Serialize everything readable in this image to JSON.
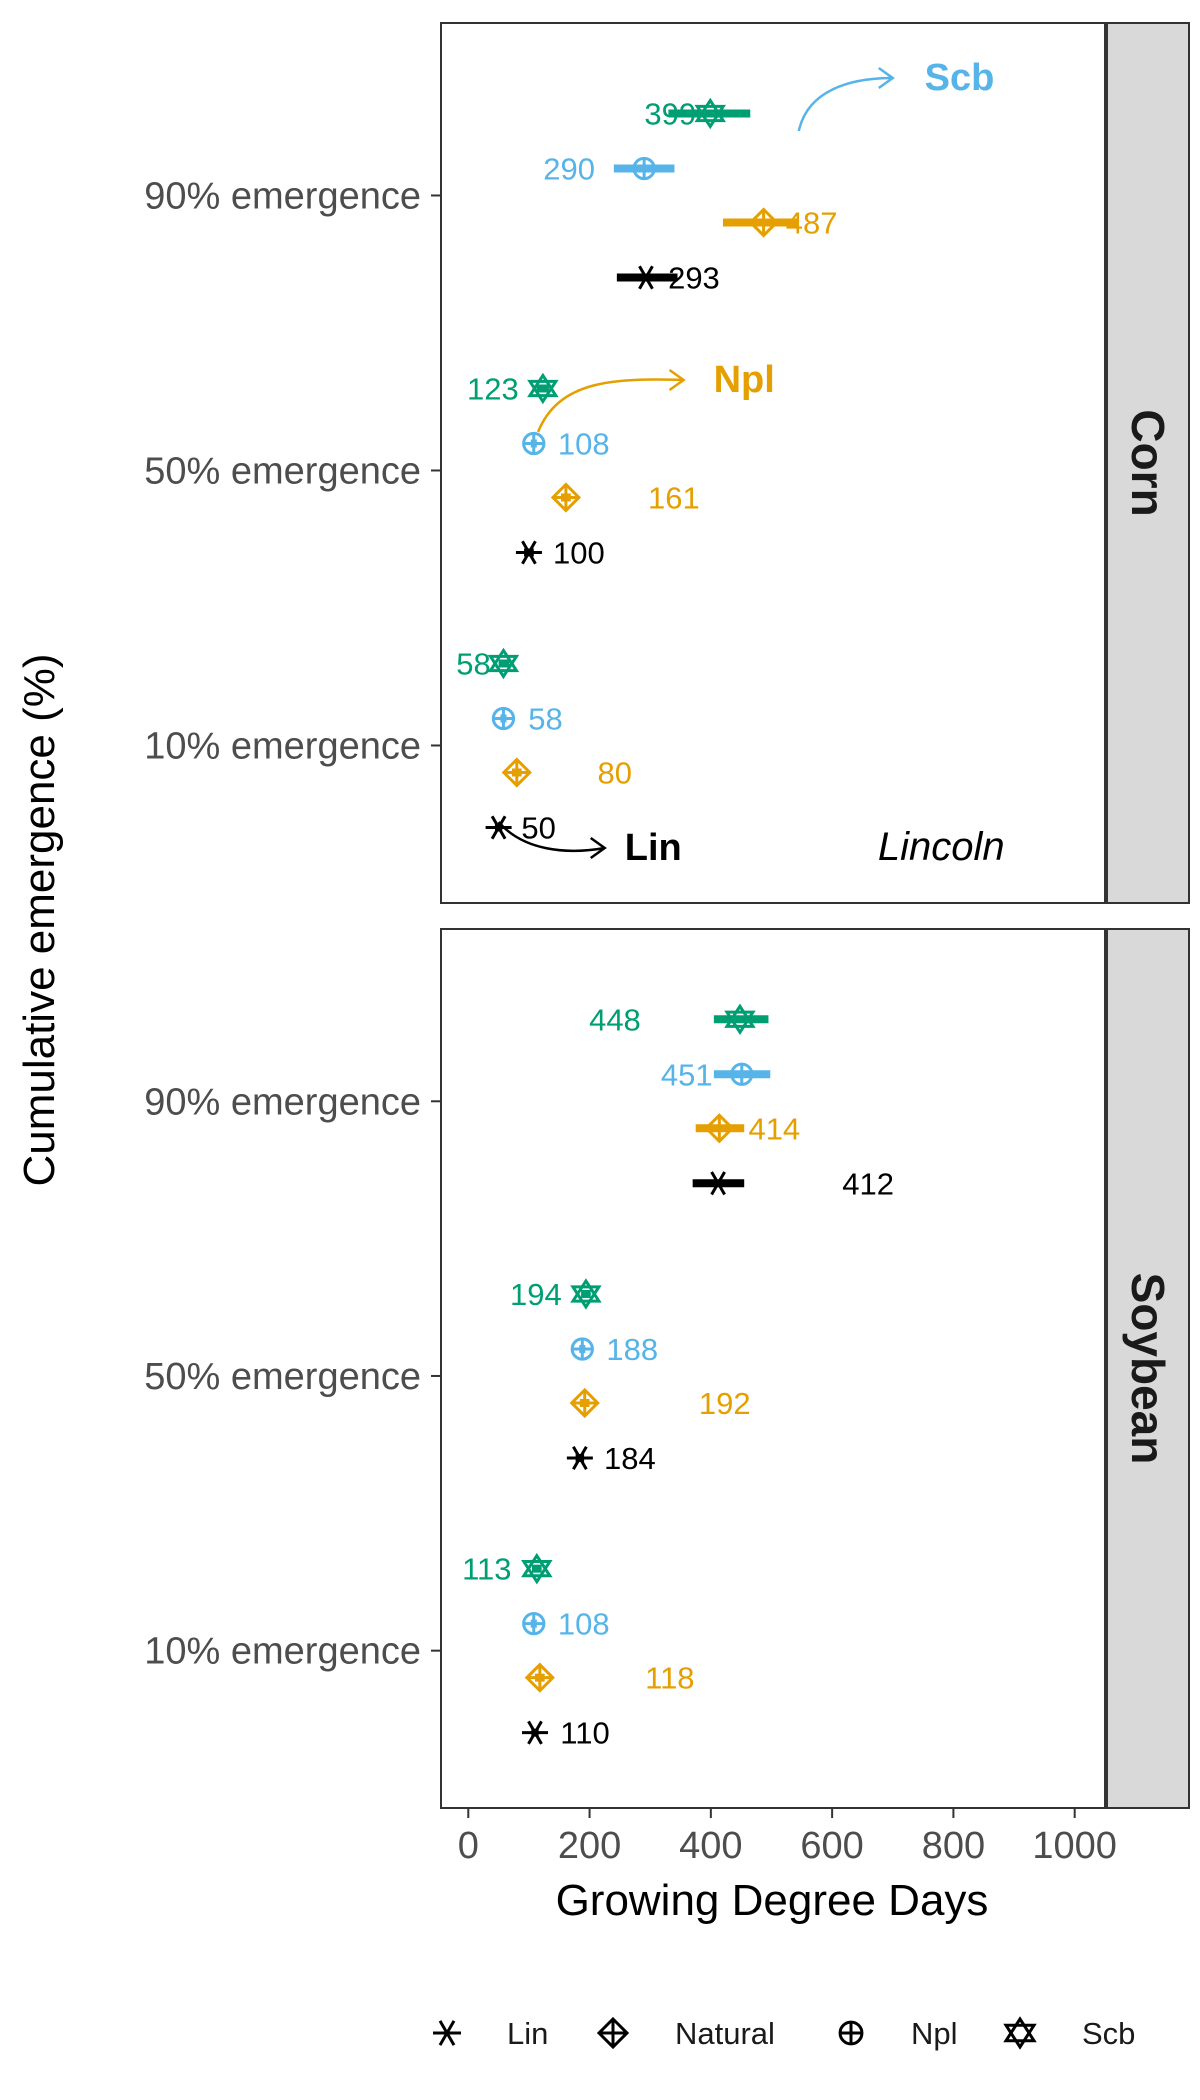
{
  "chart_data": {
    "type": "scatter",
    "xlabel": "Growing Degree Days",
    "ylabel": "Cumulative emergence (%)",
    "xlim": [
      -45,
      1050
    ],
    "x_ticks": [
      0,
      200,
      400,
      600,
      800,
      1000
    ],
    "y_categories": [
      "10% emergence",
      "50% emergence",
      "90% emergence"
    ],
    "grid": false,
    "legend_position": "bottom",
    "legend": [
      {
        "name": "Lin",
        "shape": "asterisk",
        "color": "#000000"
      },
      {
        "name": "Natural",
        "shape": "diamond-plus",
        "color": "#E69F00"
      },
      {
        "name": "Npl",
        "shape": "circle-plus",
        "color": "#56B4E9"
      },
      {
        "name": "Scb",
        "shape": "star-of-david",
        "color": "#009E73"
      }
    ],
    "panels": [
      {
        "facet": "Corn",
        "annotation": "Lincoln",
        "series": [
          {
            "name": "Scb",
            "color": "#009E73",
            "shape": "star-of-david",
            "points": [
              {
                "level": "10% emergence",
                "x": 58,
                "lo": 50,
                "hi": 68,
                "label": "58"
              },
              {
                "level": "50% emergence",
                "x": 123,
                "lo": 113,
                "hi": 133,
                "label": "123"
              },
              {
                "level": "90% emergence",
                "x": 399,
                "lo": 330,
                "hi": 465,
                "label": "399"
              }
            ]
          },
          {
            "name": "Npl",
            "color": "#56B4E9",
            "shape": "circle-plus",
            "points": [
              {
                "level": "10% emergence",
                "x": 58,
                "lo": 53,
                "hi": 63,
                "label": "58"
              },
              {
                "level": "50% emergence",
                "x": 108,
                "lo": 103,
                "hi": 113,
                "label": "108"
              },
              {
                "level": "90% emergence",
                "x": 290,
                "lo": 240,
                "hi": 340,
                "label": "290"
              }
            ]
          },
          {
            "name": "Natural",
            "color": "#E69F00",
            "shape": "diamond-plus",
            "points": [
              {
                "level": "10% emergence",
                "x": 80,
                "lo": 72,
                "hi": 88,
                "label": "80"
              },
              {
                "level": "50% emergence",
                "x": 161,
                "lo": 153,
                "hi": 169,
                "label": "161"
              },
              {
                "level": "90% emergence",
                "x": 487,
                "lo": 420,
                "hi": 545,
                "label": "487"
              }
            ]
          },
          {
            "name": "Lin",
            "color": "#000000",
            "shape": "asterisk",
            "points": [
              {
                "level": "10% emergence",
                "x": 50,
                "lo": 44,
                "hi": 56,
                "label": "50"
              },
              {
                "level": "50% emergence",
                "x": 100,
                "lo": 92,
                "hi": 108,
                "label": "100"
              },
              {
                "level": "90% emergence",
                "x": 293,
                "lo": 245,
                "hi": 345,
                "label": "293"
              }
            ]
          }
        ],
        "callouts": [
          {
            "text": "Scb",
            "color": "#56B4E9"
          },
          {
            "text": "Npl",
            "color": "#E69F00"
          },
          {
            "text": "Lin",
            "color": "#000000"
          }
        ]
      },
      {
        "facet": "Soybean",
        "annotation": "",
        "series": [
          {
            "name": "Scb",
            "color": "#009E73",
            "shape": "star-of-david",
            "points": [
              {
                "level": "10% emergence",
                "x": 113,
                "lo": 105,
                "hi": 121,
                "label": "113"
              },
              {
                "level": "50% emergence",
                "x": 194,
                "lo": 186,
                "hi": 202,
                "label": "194"
              },
              {
                "level": "90% emergence",
                "x": 448,
                "lo": 405,
                "hi": 495,
                "label": "448"
              }
            ]
          },
          {
            "name": "Npl",
            "color": "#56B4E9",
            "shape": "circle-plus",
            "points": [
              {
                "level": "10% emergence",
                "x": 108,
                "lo": 103,
                "hi": 113,
                "label": "108"
              },
              {
                "level": "50% emergence",
                "x": 188,
                "lo": 183,
                "hi": 193,
                "label": "188"
              },
              {
                "level": "90% emergence",
                "x": 451,
                "lo": 405,
                "hi": 498,
                "label": "451"
              }
            ]
          },
          {
            "name": "Natural",
            "color": "#E69F00",
            "shape": "diamond-plus",
            "points": [
              {
                "level": "10% emergence",
                "x": 118,
                "lo": 110,
                "hi": 126,
                "label": "118"
              },
              {
                "level": "50% emergence",
                "x": 192,
                "lo": 184,
                "hi": 200,
                "label": "192"
              },
              {
                "level": "90% emergence",
                "x": 414,
                "lo": 375,
                "hi": 455,
                "label": "414"
              }
            ]
          },
          {
            "name": "Lin",
            "color": "#000000",
            "shape": "asterisk",
            "points": [
              {
                "level": "10% emergence",
                "x": 110,
                "lo": 104,
                "hi": 116,
                "label": "110"
              },
              {
                "level": "50% emergence",
                "x": 184,
                "lo": 177,
                "hi": 191,
                "label": "184"
              },
              {
                "level": "90% emergence",
                "x": 412,
                "lo": 370,
                "hi": 455,
                "label": "412"
              }
            ]
          }
        ],
        "callouts": []
      }
    ]
  }
}
